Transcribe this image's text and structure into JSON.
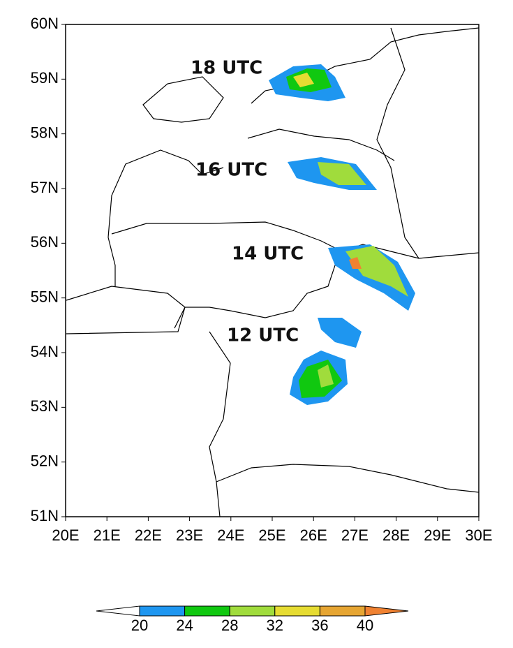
{
  "map": {
    "lat_ticks": [
      {
        "value": 60,
        "label": "60N"
      },
      {
        "value": 59,
        "label": "59N"
      },
      {
        "value": 58,
        "label": "58N"
      },
      {
        "value": 57,
        "label": "57N"
      },
      {
        "value": 56,
        "label": "56N"
      },
      {
        "value": 55,
        "label": "55N"
      },
      {
        "value": 54,
        "label": "54N"
      },
      {
        "value": 53,
        "label": "53N"
      },
      {
        "value": 52,
        "label": "52N"
      },
      {
        "value": 51,
        "label": "51N"
      }
    ],
    "lon_ticks": [
      {
        "value": 20,
        "label": "20E"
      },
      {
        "value": 21,
        "label": "21E"
      },
      {
        "value": 22,
        "label": "22E"
      },
      {
        "value": 23,
        "label": "23E"
      },
      {
        "value": 24,
        "label": "24E"
      },
      {
        "value": 25,
        "label": "25E"
      },
      {
        "value": 26,
        "label": "26E"
      },
      {
        "value": 27,
        "label": "27E"
      },
      {
        "value": 28,
        "label": "28E"
      },
      {
        "value": 29,
        "label": "29E"
      },
      {
        "value": 30,
        "label": "30E"
      }
    ],
    "annotations": [
      "18 UTC",
      "16 UTC",
      "14 UTC",
      "12 UTC"
    ],
    "colorbar": {
      "levels": [
        20,
        24,
        28,
        32,
        36,
        40
      ],
      "colors": [
        "#ffffff",
        "#1e96f0",
        "#10c810",
        "#a0dc3c",
        "#e6dc32",
        "#e6a532",
        "#f08232"
      ]
    }
  }
}
